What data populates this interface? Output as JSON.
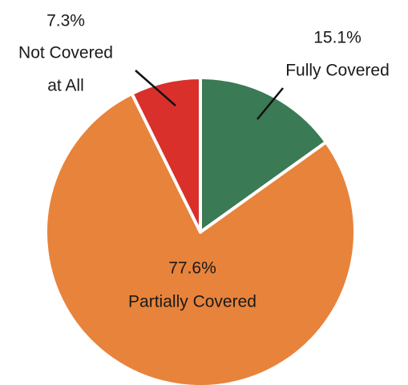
{
  "chart_data": {
    "type": "pie",
    "slices": [
      {
        "label_lines": [
          "Fully Covered"
        ],
        "value": 15.1,
        "value_label": "15.1%",
        "color": "#3a7a54"
      },
      {
        "label_lines": [
          "Partially Covered"
        ],
        "value": 77.6,
        "value_label": "77.6%",
        "color": "#e8833b"
      },
      {
        "label_lines": [
          "Not Covered",
          "at All"
        ],
        "value": 7.3,
        "value_label": "7.3%",
        "color": "#d9302b"
      }
    ],
    "start_angle_deg": 0,
    "direction": "clockwise",
    "label_placement": {
      "Fully Covered": "outside-top-right",
      "Partially Covered": "inside",
      "Not Covered": "outside-top-left"
    }
  }
}
